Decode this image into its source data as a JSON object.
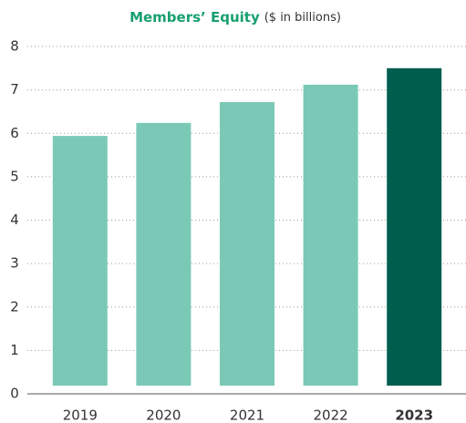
{
  "chart_data": {
    "type": "bar",
    "title": "Members’ Equity",
    "subtitle": "($ in billions)",
    "categories": [
      "2019",
      "2020",
      "2021",
      "2022",
      "2023"
    ],
    "values": [
      5.94,
      6.24,
      6.72,
      7.12,
      7.5
    ],
    "colors": [
      "#7ac9b6",
      "#7ac9b6",
      "#7ac9b6",
      "#7ac9b6",
      "#005e4f"
    ],
    "highlight_color": "#005e4f",
    "ylim": [
      0,
      8
    ],
    "yticks": [
      0,
      1,
      2,
      3,
      4,
      5,
      6,
      7,
      8
    ],
    "grid": true
  }
}
